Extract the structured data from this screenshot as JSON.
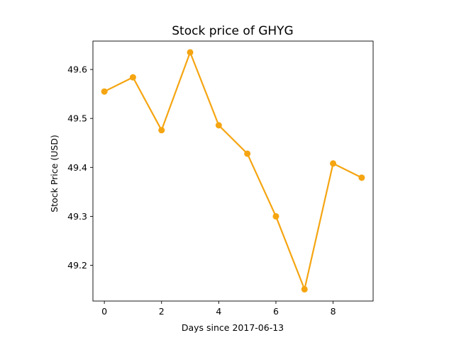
{
  "chart_data": {
    "type": "line",
    "title": "Stock price of GHYG",
    "xlabel": "Days since 2017-06-13",
    "ylabel": "Stock Price (USD)",
    "x": [
      0,
      1,
      2,
      3,
      4,
      5,
      6,
      7,
      8,
      9
    ],
    "series": [
      {
        "values": [
          49.555,
          49.584,
          49.476,
          49.635,
          49.486,
          49.428,
          49.3,
          49.151,
          49.408,
          49.379
        ],
        "color": "#f5a511"
      }
    ],
    "xlim": [
      -0.4,
      9.4
    ],
    "ylim": [
      49.127,
      49.658
    ],
    "xticks": [
      0,
      2,
      4,
      6,
      8
    ],
    "xtick_labels": [
      "0",
      "2",
      "4",
      "6",
      "8"
    ],
    "yticks": [
      49.2,
      49.3,
      49.4,
      49.5,
      49.6
    ],
    "ytick_labels": [
      "49.2",
      "49.3",
      "49.4",
      "49.5",
      "49.6"
    ],
    "grid": false,
    "legend": false
  }
}
